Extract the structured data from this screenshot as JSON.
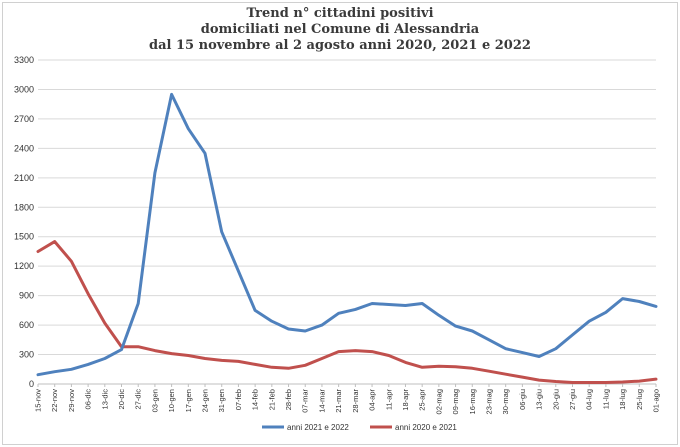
{
  "chart_data": {
    "type": "line",
    "title": "Trend n° cittadini positivi",
    "subtitle": "domiciliati nel Comune di Alessandria",
    "subtitle2": "dal 15 novembre al 2 agosto anni 2020, 2021 e 2022",
    "ylim": [
      0,
      3300
    ],
    "yticks": [
      0,
      300,
      600,
      900,
      1200,
      1500,
      1800,
      2100,
      2400,
      2700,
      3000,
      3300
    ],
    "categories": [
      "15-nov",
      "22-nov",
      "29-nov",
      "06-dic",
      "13-dic",
      "20-dic",
      "27-dic",
      "03-gen",
      "10-gen",
      "17-gen",
      "24-gen",
      "31-gen",
      "07-feb",
      "14-feb",
      "21-feb",
      "28-feb",
      "07-mar",
      "14-mar",
      "21-mar",
      "28-mar",
      "04-apr",
      "11-apr",
      "18-apr",
      "25-apr",
      "02-mag",
      "09-mag",
      "16-mag",
      "23-mag",
      "30-mag",
      "06-giu",
      "13-giu",
      "20-giu",
      "27-giu",
      "04-lug",
      "11-lug",
      "18-lug",
      "25-lug",
      "01-ago"
    ],
    "grid": true,
    "legend_position": "bottom",
    "series": [
      {
        "name": "anni 2021 e 2022",
        "color": "#4f81bd",
        "values": [
          95,
          125,
          150,
          200,
          260,
          350,
          820,
          2150,
          2950,
          2600,
          2350,
          1550,
          1150,
          750,
          640,
          560,
          540,
          600,
          720,
          760,
          820,
          810,
          800,
          820,
          700,
          590,
          540,
          450,
          360,
          320,
          280,
          360,
          500,
          640,
          730,
          870,
          840,
          790
        ]
      },
      {
        "name": "anni 2020 e 2021",
        "color": "#c0504d",
        "values": [
          1350,
          1450,
          1250,
          920,
          620,
          380,
          380,
          340,
          310,
          290,
          260,
          240,
          230,
          200,
          170,
          160,
          190,
          260,
          330,
          340,
          330,
          290,
          220,
          170,
          180,
          175,
          160,
          130,
          100,
          70,
          40,
          25,
          15,
          15,
          15,
          20,
          30,
          50
        ]
      }
    ]
  }
}
